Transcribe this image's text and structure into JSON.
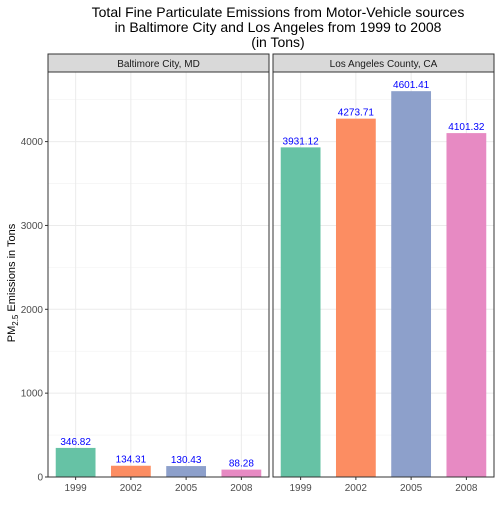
{
  "chart_data": {
    "type": "bar",
    "title": "Total Fine Particulate Emissions from Motor-Vehicle sources\nin Baltimore City and Los Angeles from 1999 to 2008\n(in Tons)",
    "title_lines": [
      "Total Fine Particulate Emissions from Motor-Vehicle sources",
      "in Baltimore City and Los Angeles from 1999 to 2008",
      "(in Tons)"
    ],
    "ylabel": {
      "prefix": "PM",
      "subscript": "2.5",
      "suffix": " Emissions in Tons"
    },
    "xlabel": "",
    "ylim": [
      0,
      4830
    ],
    "yticks": [
      0,
      1000,
      2000,
      3000,
      4000
    ],
    "grid": true,
    "legend": "none",
    "categories": [
      "1999",
      "2002",
      "2005",
      "2008"
    ],
    "category_colors": [
      "#66c2a5",
      "#fc8d62",
      "#8da0cb",
      "#e78ac3"
    ],
    "label_color": "#0000ff",
    "panels": [
      {
        "name": "Baltimore City, MD",
        "values": [
          346.82,
          134.31,
          130.43,
          88.28
        ],
        "labels": [
          "346.82",
          "134.31",
          "130.43",
          "88.28"
        ]
      },
      {
        "name": "Los Angeles County, CA",
        "values": [
          3931.12,
          4273.71,
          4601.41,
          4101.32
        ],
        "labels": [
          "3931.12",
          "4273.71",
          "4601.41",
          "4101.32"
        ]
      }
    ]
  }
}
